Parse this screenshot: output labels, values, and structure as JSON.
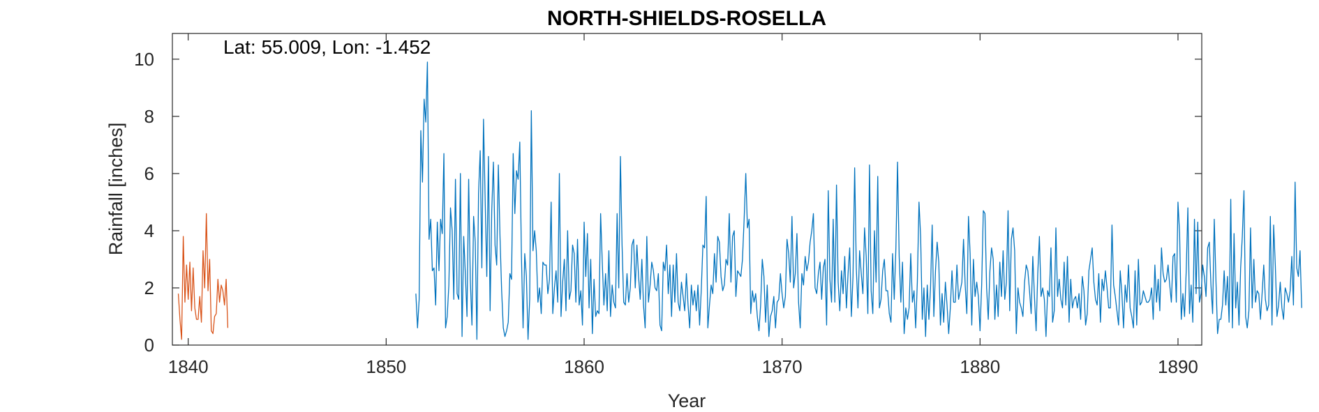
{
  "chart_data": {
    "type": "line",
    "title": "NORTH-SHIELDS-ROSELLA",
    "xlabel": "Year",
    "ylabel": "Rainfall [inches]",
    "annotation": "Lat: 55.009, Lon: -1.452",
    "xlim": [
      1839.2,
      1891.2
    ],
    "ylim": [
      0,
      10.9
    ],
    "xticks": [
      1840,
      1850,
      1860,
      1870,
      1880,
      1890
    ],
    "xtick_labels": [
      "1840",
      "1850",
      "1860",
      "1870",
      "1880",
      "1890"
    ],
    "yticks": [
      0,
      2,
      4,
      6,
      8,
      10
    ],
    "ytick_labels": [
      "0",
      "2",
      "4",
      "6",
      "8",
      "10"
    ],
    "grid": false,
    "legend": "none",
    "series": [
      {
        "color": "#D95319",
        "start_year": 1839.5,
        "step": 0.08333,
        "values": [
          1.8,
          0.9,
          0.2,
          3.8,
          1.5,
          2.8,
          1.6,
          2.9,
          1.2,
          2.7,
          1.3,
          0.9,
          0.9,
          1.7,
          0.8,
          3.3,
          2.0,
          4.6,
          1.9,
          3.0,
          0.5,
          0.4,
          1.0,
          1.1,
          2.3,
          1.5,
          2.1,
          1.9,
          1.4,
          2.3,
          0.6
        ]
      },
      {
        "color": "#0072BD",
        "start_year": 1851.5,
        "step": 0.08333,
        "values": [
          1.8,
          0.6,
          1.6,
          7.5,
          5.7,
          8.6,
          7.8,
          9.9,
          3.7,
          4.4,
          2.6,
          2.7,
          1.4,
          4.3,
          2.6,
          4.4,
          3.9,
          6.7,
          0.6,
          1.0,
          2.1,
          4.8,
          4.0,
          1.6,
          5.8,
          1.8,
          1.6,
          6.0,
          0.3,
          3.8,
          2.5,
          1.0,
          5.8,
          2.3,
          0.7,
          4.5,
          3.6,
          0.2,
          5.3,
          6.8,
          2.7,
          7.9,
          5.1,
          2.4,
          6.6,
          1.2,
          4.7,
          6.4,
          3.5,
          2.8,
          6.3,
          3.8,
          1.9,
          0.6,
          0.3,
          0.5,
          0.8,
          2.5,
          2.3,
          6.7,
          4.6,
          6.1,
          5.8,
          7.1,
          3.1,
          0.6,
          3.2,
          2.4,
          0.2,
          1.6,
          8.2,
          3.3,
          4.0,
          3.3,
          1.5,
          2.0,
          1.1,
          2.9,
          2.8,
          2.8,
          1.8,
          2.3,
          5.0,
          1.1,
          2.0,
          2.6,
          1.5,
          6.0,
          1.0,
          2.2,
          3.0,
          1.2,
          4.0,
          1.6,
          1.9,
          3.5,
          3.2,
          1.5,
          3.7,
          1.4,
          1.9,
          0.7,
          4.3,
          2.4,
          3.9,
          1.3,
          3.0,
          0.4,
          2.3,
          1.0,
          1.2,
          1.1,
          4.6,
          2.9,
          1.4,
          2.5,
          1.2,
          3.3,
          1.0,
          2.1,
          1.5,
          1.3,
          4.6,
          2.0,
          6.6,
          3.5,
          1.5,
          1.4,
          2.5,
          1.5,
          2.0,
          3.5,
          3.7,
          2.0,
          3.5,
          2.4,
          1.6,
          3.0,
          1.4,
          0.6,
          3.8,
          1.5,
          2.1,
          2.9,
          2.6,
          2.0,
          1.9,
          2.5,
          0.7,
          0.5,
          2.9,
          2.6,
          3.5,
          1.8,
          2.8,
          1.0,
          2.8,
          1.5,
          3.2,
          1.5,
          1.2,
          2.2,
          1.7,
          1.2,
          2.5,
          1.4,
          0.6,
          2.1,
          1.4,
          1.9,
          1.2,
          2.1,
          0.7,
          1.9,
          3.5,
          3.4,
          5.2,
          0.6,
          1.4,
          2.1,
          1.8,
          3.2,
          2.2,
          3.8,
          3.6,
          2.4,
          1.9,
          2.1,
          3.0,
          2.8,
          4.6,
          2.2,
          3.8,
          4.0,
          1.7,
          2.6,
          2.5,
          2.4,
          3.0,
          4.4,
          6.0,
          4.1,
          4.4,
          1.1,
          1.9,
          1.5,
          1.8,
          1.0,
          0.5,
          1.4,
          3.0,
          2.4,
          0.8,
          2.1,
          0.3,
          1.0,
          1.2,
          1.7,
          0.6,
          1.5,
          1.6,
          2.5,
          1.8,
          1.3,
          1.7,
          3.7,
          3.2,
          2.2,
          4.5,
          2.0,
          2.5,
          3.9,
          1.5,
          0.6,
          2.5,
          2.1,
          3.1,
          2.6,
          2.9,
          3.6,
          4.0,
          4.6,
          2.0,
          1.8,
          2.5,
          2.9,
          1.6,
          2.7,
          3.0,
          0.7,
          5.4,
          2.3,
          1.5,
          4.4,
          1.5,
          5.6,
          2.2,
          1.2,
          2.6,
          1.8,
          3.1,
          1.3,
          2.5,
          3.4,
          1.0,
          2.4,
          6.2,
          2.7,
          1.3,
          3.3,
          2.5,
          1.8,
          4.1,
          3.1,
          1.1,
          6.3,
          1.9,
          1.1,
          4.0,
          2.2,
          5.9,
          1.3,
          1.6,
          2.6,
          3.0,
          1.9,
          1.9,
          1.1,
          0.8,
          3.2,
          1.6,
          3.4,
          6.4,
          3.1,
          1.5,
          2.9,
          0.4,
          1.3,
          0.9,
          1.3,
          3.2,
          1.5,
          1.9,
          0.6,
          2.2,
          5.0,
          3.8,
          0.9,
          2.0,
          0.3,
          2.1,
          0.9,
          2.0,
          4.2,
          1.0,
          2.6,
          3.6,
          2.9,
          0.7,
          1.8,
          0.8,
          2.2,
          1.4,
          0.4,
          1.3,
          2.6,
          1.5,
          1.5,
          2.8,
          1.6,
          1.9,
          2.2,
          3.7,
          2.1,
          1.1,
          4.5,
          3.2,
          0.7,
          3.0,
          1.7,
          2.2,
          1.7,
          0.5,
          2.1,
          4.7,
          4.6,
          2.0,
          0.9,
          2.6,
          3.4,
          3.0,
          0.9,
          2.1,
          1.0,
          2.9,
          1.7,
          3.3,
          1.6,
          2.2,
          4.7,
          1.2,
          3.7,
          4.1,
          3.3,
          0.4,
          2.0,
          1.5,
          1.3,
          1.0,
          2.2,
          2.8,
          2.6,
          1.9,
          1.1,
          3.1,
          1.7,
          0.5,
          2.5,
          3.8,
          1.7,
          2.0,
          1.6,
          0.3,
          1.9,
          1.7,
          3.4,
          0.8,
          1.2,
          4.1,
          1.7,
          2.3,
          1.6,
          1.3,
          2.9,
          1.4,
          3.1,
          0.8,
          2.3,
          1.3,
          1.6,
          1.7,
          1.3,
          1.8,
          0.9,
          2.4,
          1.9,
          0.7,
          1.1,
          2.6,
          3.0,
          3.4,
          2.2,
          1.6,
          1.4,
          2.5,
          0.8,
          2.3,
          1.9,
          2.6,
          2.0,
          1.3,
          1.3,
          4.2,
          2.1,
          1.7,
          1.2,
          0.7,
          2.6,
          1.8,
          0.6,
          2.1,
          1.5,
          2.8,
          1.3,
          1.0,
          0.6,
          2.6,
          0.7,
          3.0,
          1.4,
          1.5,
          1.9,
          1.7,
          1.5,
          1.5,
          1.6,
          2.0,
          0.9,
          2.8,
          1.5,
          2.3,
          1.2,
          3.4,
          2.5,
          2.2,
          2.3,
          2.8,
          2.1,
          1.5,
          3.1,
          3.2,
          1.5,
          5.0,
          3.9,
          0.9,
          1.8,
          1.0,
          2.6,
          4.8,
          1.1,
          2.1,
          0.8,
          4.4,
          1.8,
          4.3,
          1.5,
          1.8,
          2.8,
          2.4,
          1.7,
          3.4,
          3.6,
          2.1,
          1.1,
          4.4,
          2.3,
          0.4,
          0.9,
          0.9,
          1.4,
          2.6,
          1.4,
          2.4,
          0.8,
          5.1,
          0.6,
          3.9,
          1.3,
          2.2,
          0.7,
          2.7,
          3.8,
          5.4,
          1.0,
          0.6,
          1.2,
          4.1,
          1.3,
          3.0,
          1.5,
          1.9,
          1.8,
          0.9,
          1.8,
          2.8,
          1.6,
          1.2,
          1.4,
          4.5,
          0.7,
          4.2,
          2.8,
          1.0,
          1.4,
          2.2,
          1.3,
          0.9,
          2.0,
          1.8,
          1.5,
          1.9,
          3.1,
          1.4,
          5.7,
          2.7,
          2.4,
          3.3,
          1.3
        ]
      }
    ]
  }
}
